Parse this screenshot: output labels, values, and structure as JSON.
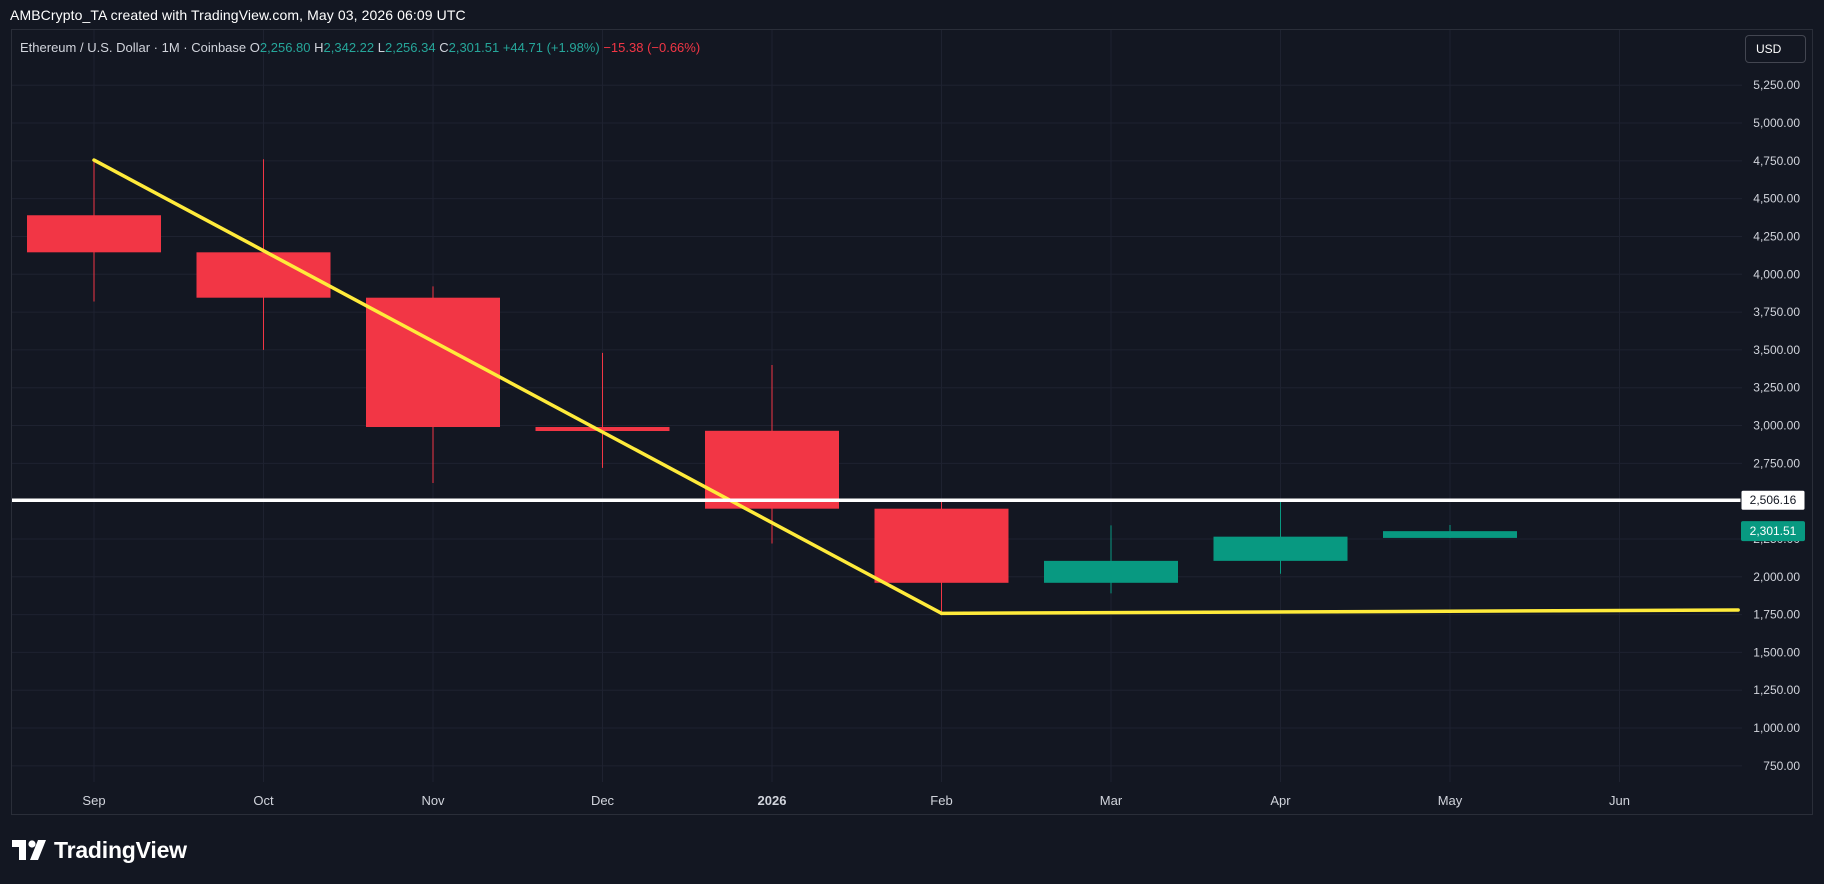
{
  "caption": "AMBCrypto_TA created with TradingView.com, May 03, 2026 06:09 UTC",
  "legend": {
    "symbol": "Ethereum / U.S. Dollar · 1M · Coinbase",
    "open_label": "O",
    "open": "2,256.80",
    "high_label": "H",
    "high": "2,342.22",
    "low_label": "L",
    "low": "2,256.34",
    "close_label": "C",
    "close": "2,301.51",
    "change": "+44.71 (+1.98%)",
    "extra_change": "−15.38 (−0.66%)"
  },
  "currency": "USD",
  "brand": "TradingView",
  "colors": {
    "background": "#131722",
    "grid": "#1e2230",
    "bearish": "#f23645",
    "bullish": "#089981",
    "trendline": "#ffeb3b",
    "level_line": "#ffffff",
    "axis_text": "#d1d4dc"
  },
  "chart_data": {
    "type": "candlestick",
    "interval": "1M",
    "x_labels": [
      "Sep",
      "Oct",
      "Nov",
      "Dec",
      "2026",
      "Feb",
      "Mar",
      "Apr",
      "May",
      "Jun"
    ],
    "y_ticks": [
      750,
      1000,
      1250,
      1500,
      1750,
      2000,
      2250,
      2500,
      2750,
      3000,
      3250,
      3500,
      3750,
      4000,
      4250,
      4500,
      4750,
      5000,
      5250
    ],
    "y_tick_labels": [
      "750.00",
      "1,000.00",
      "1,250.00",
      "1,500.00",
      "1,750.00",
      "2,000.00",
      "2,250.00",
      "2,500.00",
      "2,750.00",
      "3,000.00",
      "3,250.00",
      "3,500.00",
      "3,750.00",
      "4,000.00",
      "4,250.00",
      "4,500.00",
      "4,750.00",
      "5,000.00",
      "5,250.00"
    ],
    "ylim": [
      680,
      5380
    ],
    "candles": [
      {
        "month": "Sep",
        "open": 4390,
        "high": 4760,
        "low": 3820,
        "close": 4145
      },
      {
        "month": "Oct",
        "open": 4145,
        "high": 4760,
        "low": 3500,
        "close": 3845
      },
      {
        "month": "Nov",
        "open": 3845,
        "high": 3920,
        "low": 2620,
        "close": 2990
      },
      {
        "month": "Dec",
        "open": 2990,
        "high": 3480,
        "low": 2720,
        "close": 2965
      },
      {
        "month": "2026",
        "open": 2965,
        "high": 3400,
        "low": 2220,
        "close": 2450
      },
      {
        "month": "Feb",
        "open": 2450,
        "high": 2500,
        "low": 1750,
        "close": 1960
      },
      {
        "month": "Mar",
        "open": 1960,
        "high": 2340,
        "low": 1890,
        "close": 2105
      },
      {
        "month": "Apr",
        "open": 2105,
        "high": 2500,
        "low": 2020,
        "close": 2265
      },
      {
        "month": "May",
        "open": 2256.8,
        "high": 2342.22,
        "low": 2256.34,
        "close": 2301.51
      }
    ],
    "horizontal_level": {
      "value": 2506.16,
      "label": "2,506.16"
    },
    "last_price": {
      "value": 2301.51,
      "label": "2,301.51"
    },
    "trendlines": [
      {
        "from": {
          "month": "Sep",
          "value": 4755
        },
        "to": {
          "month": "Feb",
          "value": 1758
        }
      },
      {
        "from": {
          "month": "Feb",
          "value": 1758
        },
        "to": {
          "month": "Jun+0.7",
          "value": 1780
        }
      }
    ]
  }
}
